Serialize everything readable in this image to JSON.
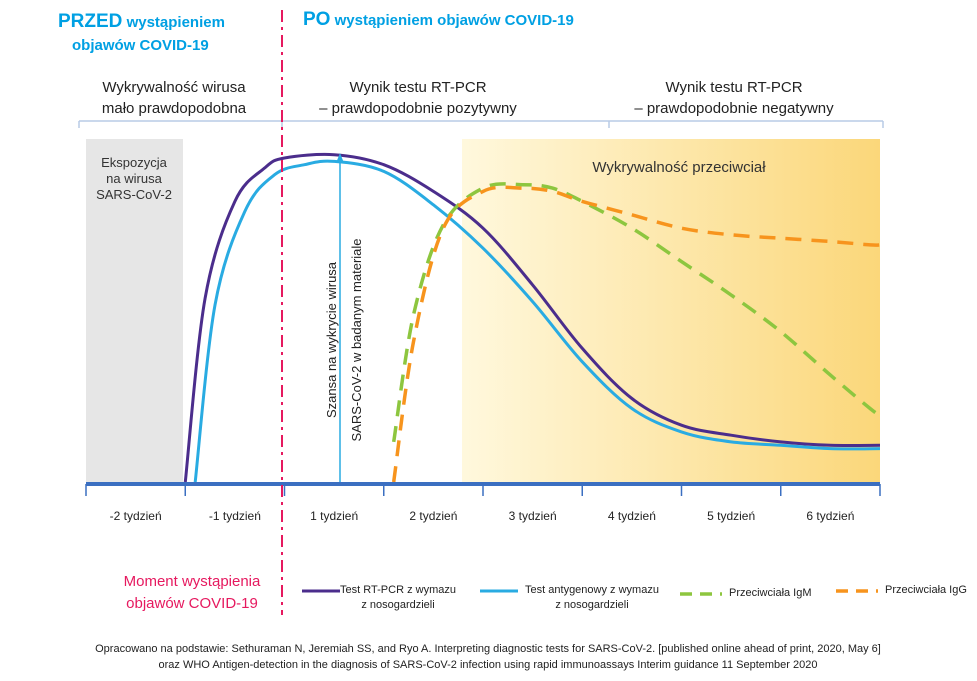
{
  "header": {
    "before_bold": "PRZED",
    "before_rest_line1": " wystąpieniem",
    "before_line2": "objawów COVID-19",
    "after_bold": "PO",
    "after_rest": " wystąpieniem objawów COVID-19"
  },
  "phases": [
    {
      "line1": "Wykrywalność wirusa",
      "line2": "mało prawdopodobna"
    },
    {
      "line1": "Wynik testu RT-PCR",
      "line2": "– prawdopodobnie pozytywny"
    },
    {
      "line1": "Wynik testu RT-PCR",
      "line2": "– prawdopodobnie negatywny"
    }
  ],
  "exposure_box": {
    "line1": "Ekspozycja",
    "line2": "na wirusa",
    "line3": "SARS-CoV-2"
  },
  "antibody_label": "Wykrywalność przeciwciał",
  "arrow_label": {
    "line1": "Szansa na wykrycie wirusa",
    "line2": "SARS-CoV-2 w badanym materiale"
  },
  "symptom_onset": {
    "line1": "Moment wystąpienia",
    "line2": "objawów COVID-19"
  },
  "legend": [
    {
      "line1": "Test RT-PCR z wymazu",
      "line2": "z nosogardzieli",
      "color": "#4b2d8c",
      "dash": false
    },
    {
      "line1": "Test antygenowy z wymazu",
      "line2": "z nosogardzieli",
      "color": "#29abe2",
      "dash": false
    },
    {
      "line1": "Przeciwciała IgM",
      "line2": "",
      "color": "#8dc63f",
      "dash": true
    },
    {
      "line1": "Przeciwciała IgG",
      "line2": "",
      "color": "#f7941d",
      "dash": true
    }
  ],
  "colors": {
    "before": "#00a0e3",
    "onset_line": "#e6195f",
    "axis": "#3b6fc1",
    "exposure_bg": "#e6e6e6",
    "antibody_bg": "#fbdb86"
  },
  "footer": {
    "line1": "Opracowano na podstawie: Sethuraman N, Jeremiah SS, and Ryo A. Interpreting diagnostic tests for SARS-CoV-2. [published online  ahead of print, 2020, May 6]",
    "line2": "oraz WHO Antigen-detection in the diagnosis of SARS-CoV-2 infection using rapid immunoassays Interim guidance 11 September 2020"
  },
  "chart_data": {
    "type": "line",
    "title": "",
    "xlabel": "",
    "ylabel": "",
    "categories": [
      "-2 tydzień",
      "-1 tydzień",
      "1 tydzień",
      "2 tydzień",
      "3 tydzień",
      "4 tydzień",
      "5 tydzień",
      "6 tydzień"
    ],
    "xlim": [
      -2,
      6
    ],
    "ylim": [
      0,
      100
    ],
    "series": [
      {
        "name": "Test RT-PCR z wymazu z nosogardzieli",
        "x": [
          -1.0,
          -0.8,
          -0.5,
          -0.2,
          0.0,
          0.5,
          1.0,
          1.5,
          2.0,
          2.5,
          3.0,
          3.5,
          4.0,
          4.5,
          5.0,
          5.5,
          6.0
        ],
        "y": [
          0,
          55,
          84,
          94,
          97,
          98,
          95,
          87,
          76,
          59,
          40,
          25,
          17,
          14,
          12,
          11,
          11
        ]
      },
      {
        "name": "Test antygenowy z wymazu z nosogardzieli",
        "x": [
          -0.9,
          -0.7,
          -0.4,
          -0.1,
          0.2,
          0.5,
          1.0,
          1.5,
          2.0,
          2.5,
          3.0,
          3.5,
          4.0,
          4.5,
          5.0,
          5.5,
          6.0
        ],
        "y": [
          0,
          53,
          81,
          92,
          95,
          96,
          93,
          83,
          70,
          54,
          36,
          22,
          15,
          12,
          11,
          10,
          10
        ]
      },
      {
        "name": "Przeciwciała IgM",
        "x": [
          1.1,
          1.3,
          1.6,
          2.0,
          2.4,
          2.7,
          3.0,
          3.5,
          4.0,
          4.5,
          5.0,
          5.5,
          5.9,
          6.0
        ],
        "y": [
          12,
          50,
          77,
          88,
          89,
          88,
          84,
          76,
          66,
          56,
          45,
          32,
          22,
          20
        ]
      },
      {
        "name": "Przeciwciała IgG",
        "x": [
          1.1,
          1.3,
          1.6,
          2.0,
          2.4,
          2.7,
          3.0,
          3.5,
          4.0,
          4.5,
          5.0,
          5.5,
          5.9,
          6.0
        ],
        "y": [
          0,
          42,
          76,
          87,
          88,
          87,
          84,
          80,
          76,
          74,
          73,
          72,
          71,
          71
        ]
      }
    ]
  }
}
